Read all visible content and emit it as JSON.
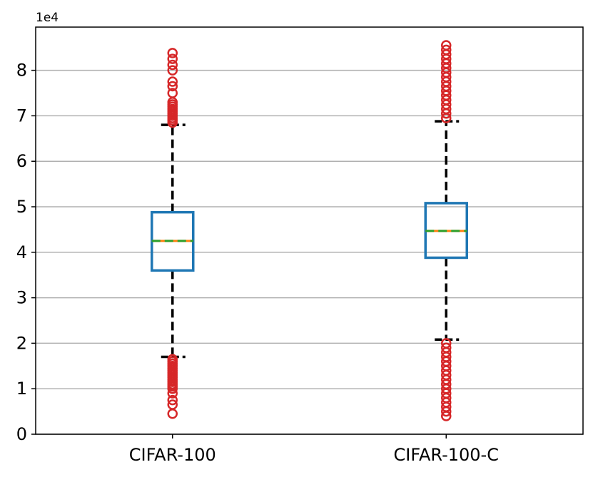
{
  "chart_data": {
    "type": "box",
    "y_offset_label": "1e4",
    "ylim": [
      0,
      8.95
    ],
    "y_ticks": [
      0,
      1,
      2,
      3,
      4,
      5,
      6,
      7,
      8
    ],
    "y_tick_labels": [
      "0",
      "1",
      "2",
      "3",
      "4",
      "5",
      "6",
      "7",
      "8"
    ],
    "grid": "horizontal",
    "categories": [
      "CIFAR-100",
      "CIFAR-100-C"
    ],
    "boxes": [
      {
        "label": "CIFAR-100",
        "whisker_low": 1.7,
        "q1": 3.6,
        "median": 4.25,
        "mean": 4.25,
        "q3": 4.88,
        "whisker_high": 6.8,
        "outliers": [
          0.45,
          0.65,
          0.75,
          0.9,
          1.0,
          1.05,
          1.1,
          1.15,
          1.2,
          1.25,
          1.3,
          1.35,
          1.4,
          1.45,
          1.5,
          1.55,
          1.6,
          1.65,
          6.85,
          6.9,
          6.95,
          7.0,
          7.05,
          7.1,
          7.15,
          7.2,
          7.25,
          7.3,
          7.5,
          7.65,
          7.75,
          8.0,
          8.12,
          8.25,
          8.38
        ]
      },
      {
        "label": "CIFAR-100-C",
        "whisker_low": 2.08,
        "q1": 3.88,
        "median": 4.47,
        "mean": 4.47,
        "q3": 5.08,
        "whisker_high": 6.88,
        "outliers": [
          0.4,
          0.5,
          0.6,
          0.7,
          0.8,
          0.9,
          1.0,
          1.1,
          1.2,
          1.3,
          1.4,
          1.5,
          1.6,
          1.7,
          1.8,
          1.9,
          2.0,
          6.95,
          7.05,
          7.15,
          7.25,
          7.35,
          7.45,
          7.55,
          7.65,
          7.75,
          7.85,
          7.95,
          8.05,
          8.15,
          8.25,
          8.35,
          8.45,
          8.55
        ]
      }
    ],
    "colors": {
      "box": "#1f77b4",
      "median": "#ff7f0e",
      "mean": "#2ca02c",
      "whisker": "#000000",
      "outlier": "#d62728",
      "grid": "#b0b0b0"
    }
  }
}
